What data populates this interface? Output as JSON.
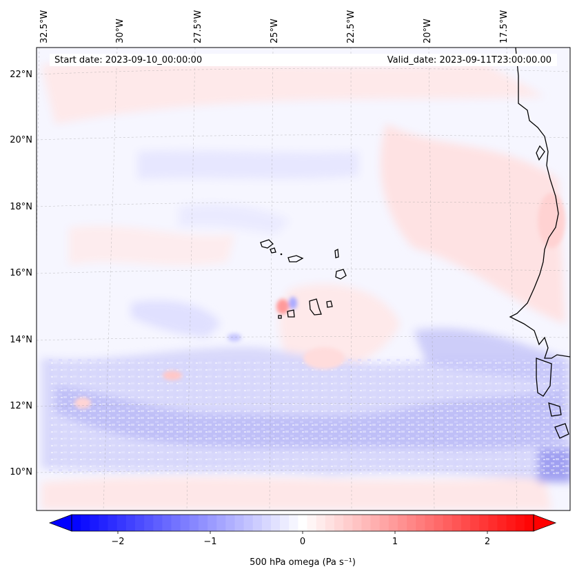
{
  "header": {
    "start_date": "Start date: 2023-09-10_00:00:00",
    "valid_date": "Valid_date: 2023-09-11T23:00:00.00"
  },
  "map": {
    "lon_labels": [
      "32.5°W",
      "30°W",
      "27.5°W",
      "25°W",
      "22.5°W",
      "20°W",
      "17.5°W"
    ],
    "lat_labels": [
      "22°N",
      "20°N",
      "18°N",
      "16°N",
      "14°N",
      "12°N",
      "10°N"
    ]
  },
  "colorbar": {
    "label": "500 hPa omega (Pa s⁻¹)",
    "ticks": [
      "−2",
      "−1",
      "0",
      "1",
      "2"
    ],
    "tick_values": [
      -2,
      -1,
      0,
      1,
      2
    ],
    "range": [
      -2.5,
      2.5
    ],
    "colormap": "bwr",
    "colors": {
      "negative": "#0000ff",
      "zero": "#ffffff",
      "positive": "#ff0000"
    }
  }
}
